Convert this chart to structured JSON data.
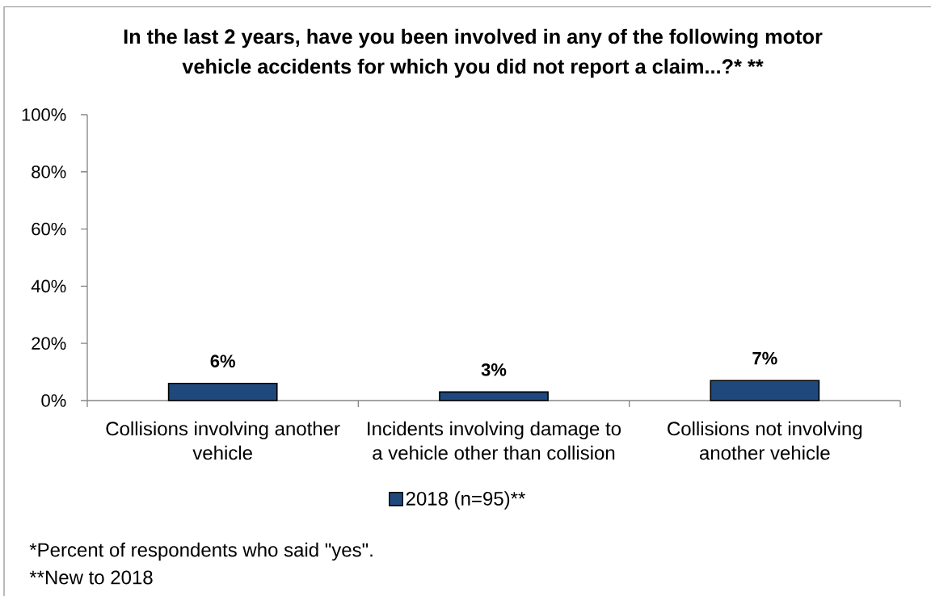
{
  "chart_data": {
    "type": "bar",
    "title": "In the last 2 years, have you been involved in any of the following motor vehicle accidents for which you did not report a claim...?* **",
    "categories": [
      "Collisions involving another vehicle",
      "Incidents involving damage to a vehicle other than collision",
      "Collisions not involving another vehicle"
    ],
    "series": [
      {
        "name": "2018 (n=95)**",
        "color": "#1f497d",
        "values": [
          6,
          3,
          7
        ],
        "value_labels": [
          "6%",
          "3%",
          "7%"
        ]
      }
    ],
    "ylim": [
      0,
      100
    ],
    "yticks": [
      {
        "value": 0,
        "label": "0%"
      },
      {
        "value": 20,
        "label": "20%"
      },
      {
        "value": 40,
        "label": "40%"
      },
      {
        "value": 60,
        "label": "60%"
      },
      {
        "value": 80,
        "label": "80%"
      },
      {
        "value": 100,
        "label": "100%"
      }
    ],
    "legend": "bottom",
    "annotations": [
      "*Percent of respondents who said \"yes\".",
      "**New to 2018"
    ]
  }
}
